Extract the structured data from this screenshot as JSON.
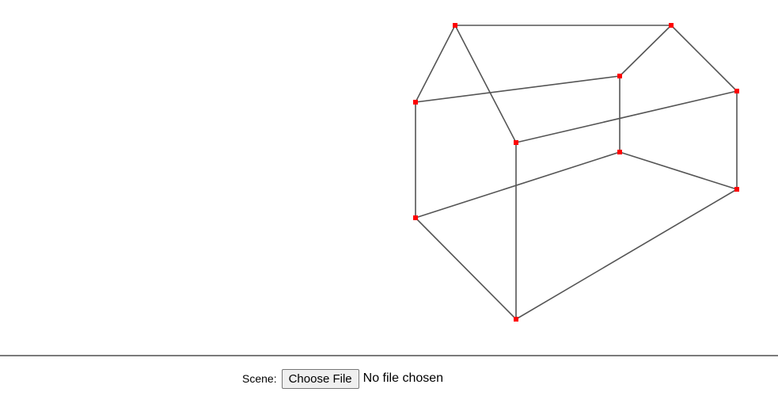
{
  "scene": {
    "label": "Scene:",
    "choose_file_label": "Choose File",
    "file_status": "No file chosen"
  },
  "colors": {
    "edge": "#555555",
    "vertex": "#ff0000",
    "divider": "#7a7a7a"
  }
}
